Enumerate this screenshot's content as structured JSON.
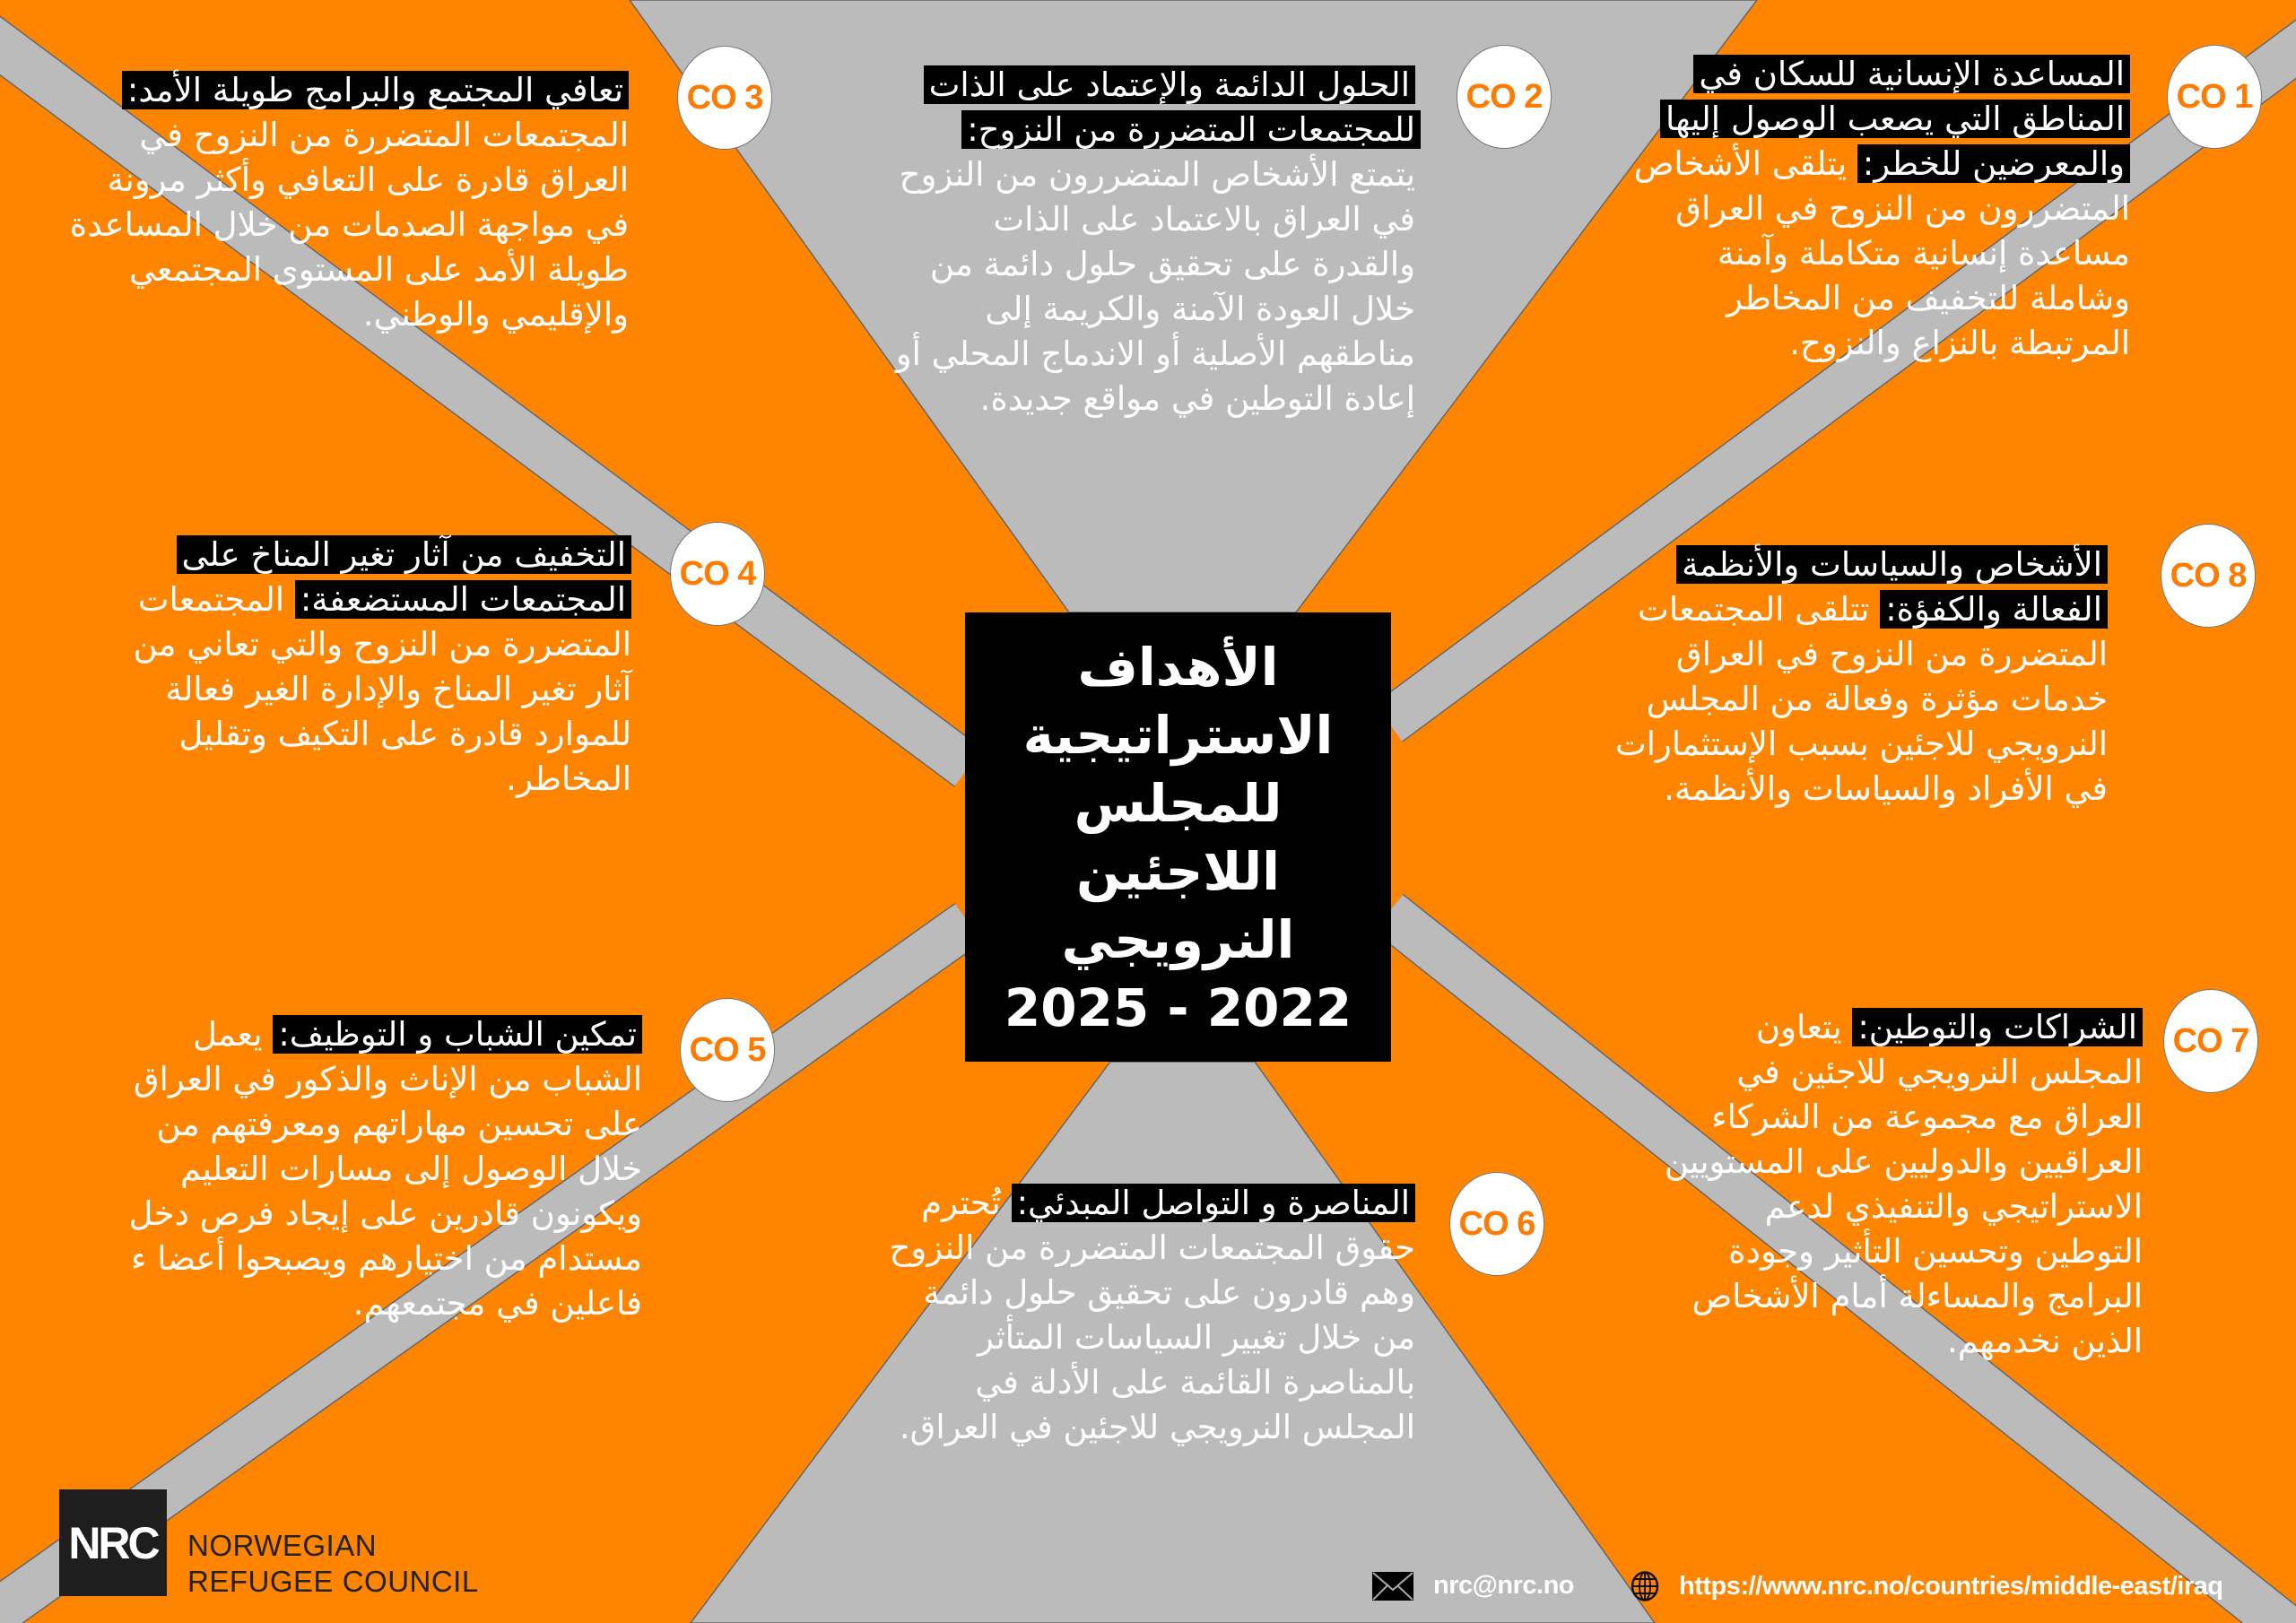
{
  "colors": {
    "background": "#FF8500",
    "band": "#BBBBBB",
    "heading_bg": "#000000",
    "circle_text": "#FF7A00"
  },
  "title": {
    "line": "الأهداف الاستراتيجية للمجلس اللاجئين النرويجي",
    "years": "2025 - 2022"
  },
  "objectives": [
    {
      "label": "CO 1",
      "heading": "المساعدة الإنسانية للسكان في المناطق التي يصعب الوصول إليها والمعرضين للخطر:",
      "body": "يتلقى الأشخاص المتضررون من النزوح في العراق مساعدة إنسانية متكاملة وآمنة وشاملة للتخفيف من المخاطر المرتبطة بالنزاع والنزوح."
    },
    {
      "label": "CO 2",
      "heading": "الحلول الدائمة والإعتماد على الذات للمجتمعات المتضررة من النزوح:",
      "body": "يتمتع الأشخاص المتضررون من النزوح في العراق بالاعتماد على الذات والقدرة على تحقيق حلول دائمة من خلال العودة الآمنة والكريمة إلى مناطقهم الأصلية أو الاندماج المحلي أو إعادة التوطين في مواقع جديدة."
    },
    {
      "label": "CO 3",
      "heading": "تعافي المجتمع والبرامج طويلة الأمد:",
      "body": "المجتمعات المتضررة من النزوح في العراق قادرة على التعافي وأكثر مرونة في مواجهة الصدمات من خلال المساعدة طويلة الأمد على المستوى المجتمعي والإقليمي والوطني."
    },
    {
      "label": "CO 4",
      "heading": "التخفيف من آثار تغير المناخ على المجتمعات المستضعفة:",
      "body": "المجتمعات المتضررة من النزوح والتي تعاني من آثار تغير المناخ والإدارة الغير فعالة للموارد قادرة على التكيف وتقليل المخاطر."
    },
    {
      "label": "CO 5",
      "heading": "تمكين الشباب و التوظيف:",
      "body": "يعمل الشباب من الإناث والذكور في العراق على تحسين مهاراتهم ومعرفتهم من خلال الوصول إلى مسارات التعليم ويكونون قادرين على إيجاد فرص دخل مستدام من اختيارهم ويصبحوا أعضا ء فاعلين في مجتمعهم."
    },
    {
      "label": "CO 6",
      "heading": "المناصرة و التواصل المبدئي:",
      "body": "تُحترم حقوق المجتمعات المتضررة من النزوح وهم قادرون على تحقيق حلول دائمة من خلال تغيير السياسات المتأثر بالمناصرة القائمة على الأدلة في المجلس النرويجي للاجئين في العراق."
    },
    {
      "label": "CO 7",
      "heading": "الشراكات والتوطين:",
      "body": "يتعاون المجلس النرويجي للاجئين في العراق مع مجموعة من الشركاء العراقيين والدوليين على المستويين الاستراتيجي والتنفيذي لدعم التوطين وتحسين التأثير وجودة البرامج والمساءلة أمام الأشخاص الذين نخدمهم."
    },
    {
      "label": "CO 8",
      "heading": "الأشخاص والسياسات والأنظمة الفعالة والكفؤة:",
      "body": "تتلقى المجتمعات المتضررة من النزوح في العراق خدمات مؤثرة وفعالة من المجلس النرويجي للاجئين بسبب الإستثمارات في الأفراد والسياسات والأنظمة."
    }
  ],
  "footer": {
    "logo_text": "NRC",
    "org_line1": "NORWEGIAN",
    "org_line2": "REFUGEE COUNCIL",
    "email": "nrc@nrc.no",
    "email_icon": "envelope-icon",
    "website": "https://www.nrc.no/countries/middle-east/iraq",
    "website_icon": "globe-icon"
  }
}
